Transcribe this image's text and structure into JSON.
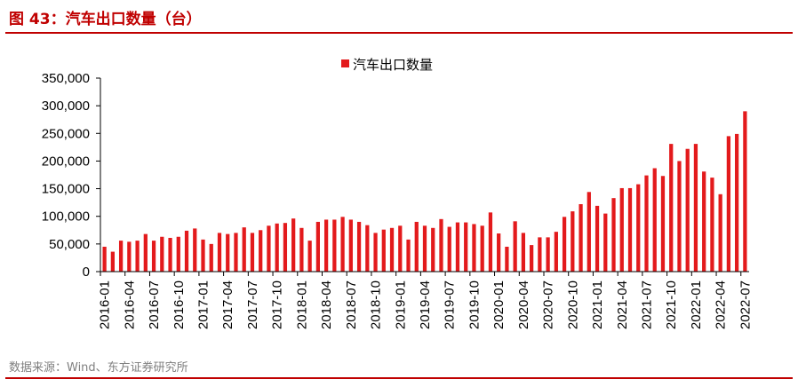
{
  "figure": {
    "title": "图 43：汽车出口数量（台）",
    "source": "数据来源：Wind、东方证券研究所"
  },
  "colors": {
    "accent": "#c00000",
    "bar": "#e31a1c"
  },
  "chart_data": {
    "type": "bar",
    "title": "",
    "xlabel": "",
    "ylabel": "",
    "ylim": [
      0,
      350000
    ],
    "yticks": [
      0,
      50000,
      100000,
      150000,
      200000,
      250000,
      300000,
      350000
    ],
    "ytick_labels": [
      "0",
      "50,000",
      "100,000",
      "150,000",
      "200,000",
      "250,000",
      "300,000",
      "350,000"
    ],
    "grid": false,
    "legend": "top-center",
    "xtick_labels": [
      "2016-01",
      "2016-04",
      "2016-07",
      "2016-10",
      "2017-01",
      "2017-04",
      "2017-07",
      "2017-10",
      "2018-01",
      "2018-04",
      "2018-07",
      "2018-10",
      "2019-01",
      "2019-04",
      "2019-07",
      "2019-10",
      "2020-01",
      "2020-04",
      "2020-07",
      "2020-10",
      "2021-01",
      "2021-04",
      "2021-07",
      "2021-10",
      "2022-01",
      "2022-04",
      "2022-07"
    ],
    "categories": [
      "2016-01",
      "2016-02",
      "2016-03",
      "2016-04",
      "2016-05",
      "2016-06",
      "2016-07",
      "2016-08",
      "2016-09",
      "2016-10",
      "2016-11",
      "2016-12",
      "2017-01",
      "2017-02",
      "2017-03",
      "2017-04",
      "2017-05",
      "2017-06",
      "2017-07",
      "2017-08",
      "2017-09",
      "2017-10",
      "2017-11",
      "2017-12",
      "2018-01",
      "2018-02",
      "2018-03",
      "2018-04",
      "2018-05",
      "2018-06",
      "2018-07",
      "2018-08",
      "2018-09",
      "2018-10",
      "2018-11",
      "2018-12",
      "2019-01",
      "2019-02",
      "2019-03",
      "2019-04",
      "2019-05",
      "2019-06",
      "2019-07",
      "2019-08",
      "2019-09",
      "2019-10",
      "2019-11",
      "2019-12",
      "2020-01",
      "2020-02",
      "2020-03",
      "2020-04",
      "2020-05",
      "2020-06",
      "2020-07",
      "2020-08",
      "2020-09",
      "2020-10",
      "2020-11",
      "2020-12",
      "2021-01",
      "2021-02",
      "2021-03",
      "2021-04",
      "2021-05",
      "2021-06",
      "2021-07",
      "2021-08",
      "2021-09",
      "2021-10",
      "2021-11",
      "2021-12",
      "2022-01",
      "2022-02",
      "2022-03",
      "2022-04",
      "2022-05",
      "2022-06",
      "2022-07"
    ],
    "series": [
      {
        "name": "汽车出口数量",
        "values": [
          45000,
          36000,
          56000,
          54000,
          56000,
          68000,
          56000,
          63000,
          61000,
          63000,
          74000,
          78000,
          58000,
          50000,
          70000,
          68000,
          70000,
          80000,
          70000,
          75000,
          83000,
          87000,
          88000,
          96000,
          79000,
          56000,
          90000,
          94000,
          94000,
          99000,
          94000,
          90000,
          84000,
          70000,
          76000,
          79000,
          83000,
          58000,
          90000,
          83000,
          79000,
          95000,
          81000,
          89000,
          89000,
          86000,
          83000,
          107000,
          69000,
          45000,
          91000,
          70000,
          48000,
          62000,
          62000,
          72000,
          99000,
          109000,
          122000,
          144000,
          119000,
          105000,
          133000,
          151000,
          151000,
          158000,
          174000,
          187000,
          173000,
          231000,
          200000,
          222000,
          231000,
          181000,
          170000,
          140000,
          245000,
          249000,
          290000
        ]
      }
    ]
  }
}
